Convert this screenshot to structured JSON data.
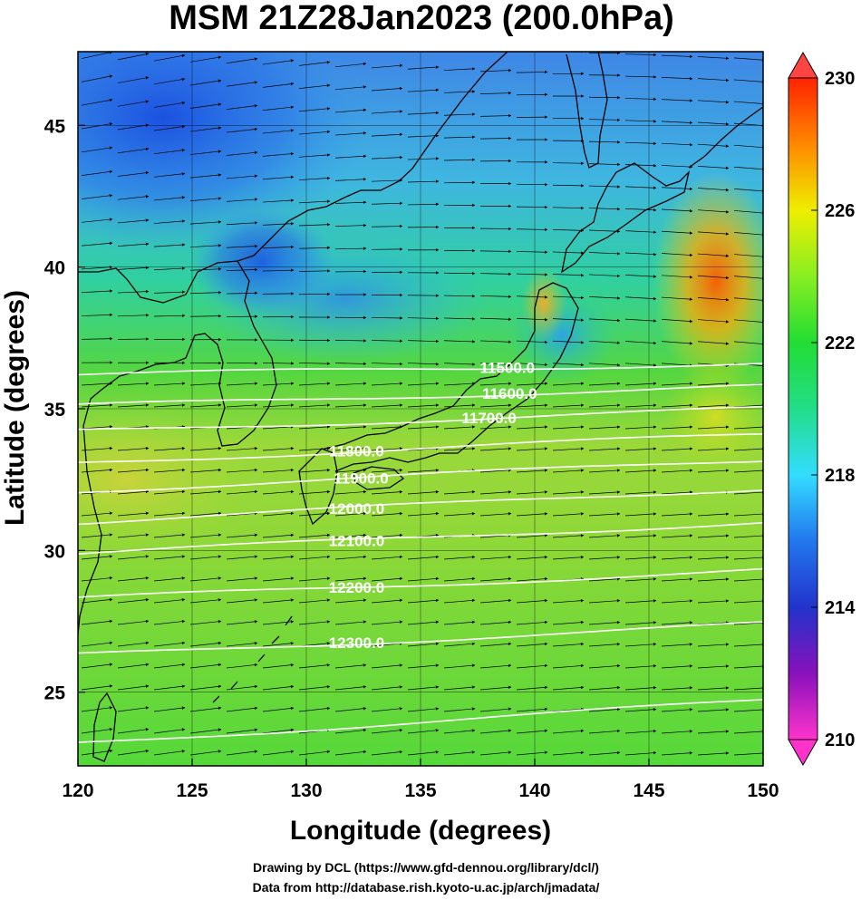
{
  "title": "MSM 21Z28Jan2023 (200.0hPa)",
  "credits": [
    "Drawing by DCL (https://www.gfd-dennou.org/library/dcl/)",
    "Data from http://database.rish.kyoto-u.ac.jp/arch/jmadata/"
  ],
  "chart_data": {
    "type": "heatmap",
    "title": "MSM 21Z28Jan2023 (200.0hPa)",
    "xlabel": "Longitude (degrees)",
    "ylabel": "Latitude  (degrees)",
    "xlim": [
      120,
      150
    ],
    "ylim": [
      22.4,
      47.6
    ],
    "x_ticks": [
      120,
      125,
      130,
      135,
      140,
      145,
      150
    ],
    "y_ticks": [
      25,
      30,
      35,
      40,
      45
    ],
    "colorbar": {
      "min": 210,
      "max": 230,
      "ticks": [
        210,
        214,
        218,
        222,
        226,
        230
      ],
      "colors": [
        "#ff33cc",
        "#2233cc",
        "#33ddff",
        "#22dd33",
        "#eeee00",
        "#ff2200"
      ]
    },
    "contours": [
      {
        "label": "11500.0",
        "lat_west": 36.2,
        "lat_east": 36.6
      },
      {
        "label": "11600.0",
        "lat_west": 35.1,
        "lat_east": 35.8
      },
      {
        "label": "11700.0",
        "lat_west": 34.2,
        "lat_east": 35.0
      },
      {
        "label": "11800.0",
        "lat_west": 33.1,
        "lat_east": 34.1
      },
      {
        "label": "11900.0",
        "lat_west": 32.1,
        "lat_east": 33.2
      },
      {
        "label": "12000.0",
        "lat_west": 31.0,
        "lat_east": 32.2
      },
      {
        "label": "12100.0",
        "lat_west": 29.9,
        "lat_east": 31.0
      },
      {
        "label": "12200.0",
        "lat_west": 28.3,
        "lat_east": 29.3
      },
      {
        "label": "12300.0",
        "lat_west": 26.3,
        "lat_east": 27.4
      },
      {
        "label": "",
        "lat_west": 23.2,
        "lat_east": 24.7
      }
    ],
    "contour_label_lons": {
      "11500.0": 138.8,
      "11600.0": 138.9,
      "11700.0": 138.0,
      "11800.0": 132.2,
      "11900.0": 132.4,
      "12000.0": 132.2,
      "12100.0": 132.2,
      "12200.0": 132.2,
      "12300.0": 132.2
    },
    "wind": "westerly vector field (arrows)",
    "temperature_features": [
      {
        "region": "Okhotsk / NE China",
        "value": 213
      },
      {
        "region": "Korea north",
        "value": 215
      },
      {
        "region": "Tohoku",
        "value": 225
      },
      {
        "region": "East of Hokkaido",
        "value": 229
      },
      {
        "region": "Southern band",
        "value": 223.5
      }
    ]
  }
}
